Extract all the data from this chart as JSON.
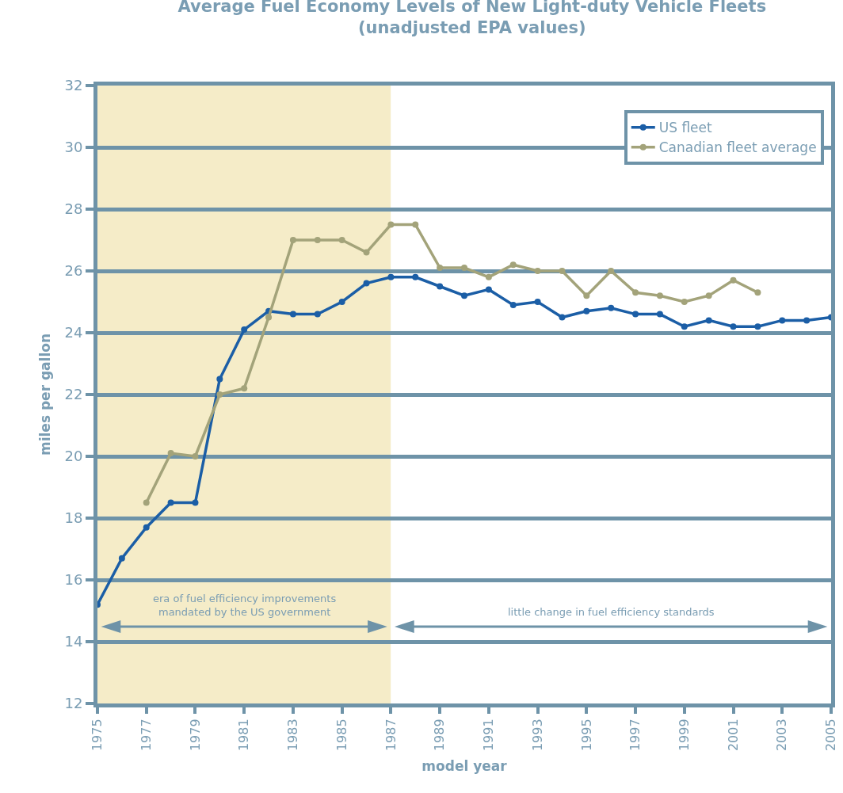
{
  "chart_data": {
    "type": "line",
    "title": "Average Fuel Economy Levels of New Light-duty Vehicle Fleets",
    "subtitle": "(unadjusted EPA values)",
    "xlabel": "model year",
    "ylabel": "miles per gallon",
    "x": [
      1975,
      1976,
      1977,
      1978,
      1979,
      1980,
      1981,
      1982,
      1983,
      1984,
      1985,
      1986,
      1987,
      1988,
      1989,
      1990,
      1991,
      1992,
      1993,
      1994,
      1995,
      1996,
      1997,
      1998,
      1999,
      2000,
      2001,
      2002,
      2003,
      2004,
      2005
    ],
    "series": [
      {
        "name": "US fleet",
        "color": "#1b5ea6",
        "values": [
          15.2,
          16.7,
          17.7,
          18.5,
          18.5,
          22.5,
          24.1,
          24.7,
          24.6,
          24.6,
          25.0,
          25.6,
          25.8,
          25.8,
          25.5,
          25.2,
          25.4,
          24.9,
          25.0,
          24.5,
          24.7,
          24.8,
          24.6,
          24.6,
          24.2,
          24.4,
          24.2,
          24.2,
          24.4,
          24.4,
          24.5
        ]
      },
      {
        "name": "Canadian fleet average",
        "color": "#a3a37a",
        "values": [
          null,
          null,
          18.5,
          20.1,
          20.0,
          22.0,
          22.2,
          24.5,
          27.0,
          27.0,
          27.0,
          26.6,
          27.5,
          27.5,
          26.1,
          26.1,
          25.8,
          26.2,
          26.0,
          26.0,
          25.2,
          26.0,
          25.3,
          25.2,
          25.0,
          25.2,
          25.7,
          25.3,
          null,
          null,
          null
        ]
      }
    ],
    "xlim": [
      1975,
      2005
    ],
    "xticks": [
      1975,
      1977,
      1979,
      1981,
      1983,
      1985,
      1987,
      1989,
      1991,
      1993,
      1995,
      1997,
      1999,
      2001,
      2003,
      2005
    ],
    "ylim": [
      12,
      32
    ],
    "yticks": [
      12,
      14,
      16,
      18,
      20,
      22,
      24,
      26,
      28,
      30,
      32
    ],
    "grid": "y",
    "legend": "top right",
    "marker": "circle",
    "line_style": "solid",
    "bands": [
      {
        "axis": "x",
        "from": 1975,
        "to": 1987,
        "label": "era of fuel efficiency improvements\nmandated by the US government",
        "color": "#f5ecc8"
      },
      {
        "axis": "x",
        "from": 1987,
        "to": 2005,
        "label": "little change in fuel efficiency standards",
        "color": "#ffffff"
      }
    ]
  }
}
